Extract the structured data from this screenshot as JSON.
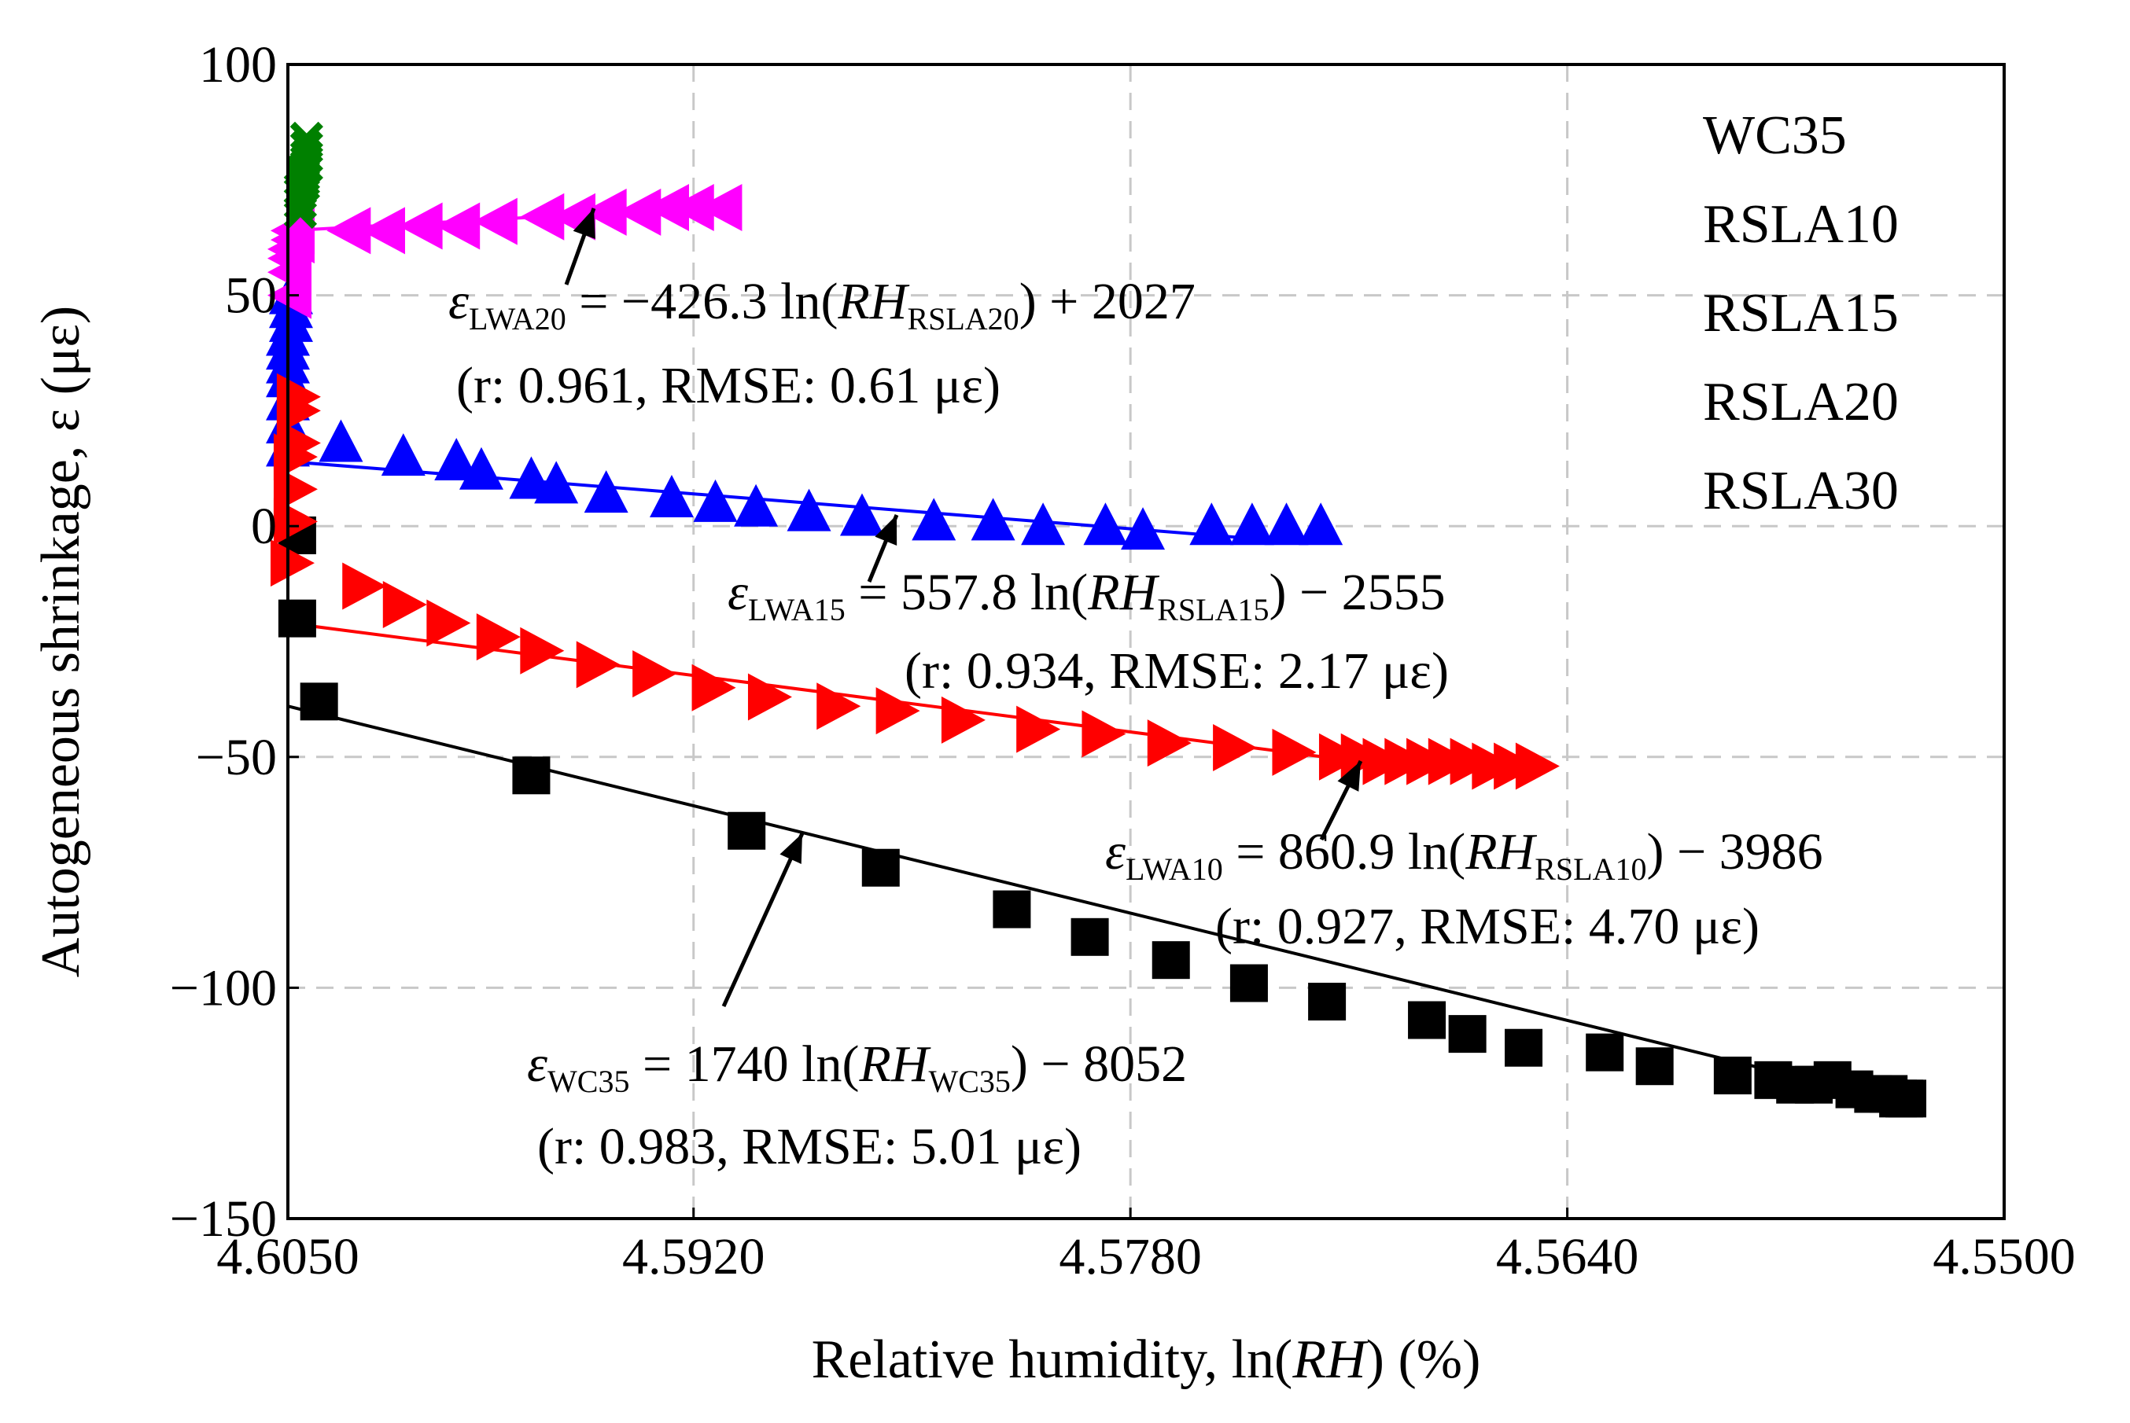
{
  "chart_data": {
    "type": "scatter",
    "title": "",
    "xlabel": "Relative humidity, ln(RH) (%)",
    "xlabel_parts": {
      "pre": "Relative humidity, ln(",
      "italic": "RH",
      "post": ") (%)"
    },
    "ylabel": "Autogeneous shrinkage, ε (με)",
    "xlim": [
      4.605,
      4.55
    ],
    "ylim": [
      -150,
      100
    ],
    "x_ticks": [
      "4.6050",
      "4.5920",
      "4.5780",
      "4.5640",
      "4.5500"
    ],
    "x_tick_values": [
      4.605,
      4.592,
      4.578,
      4.564,
      4.55
    ],
    "y_ticks": [
      "100",
      "50",
      "0",
      "−50",
      "−100",
      "−150"
    ],
    "y_tick_values": [
      100,
      50,
      0,
      -50,
      -100,
      -150
    ],
    "grid": true,
    "legend": {
      "placement": "top-right",
      "entries": [
        "WC35",
        "RSLA10",
        "RSLA15",
        "RSLA20",
        "RSLA30"
      ]
    },
    "series": [
      {
        "name": "WC35",
        "color": "#000000",
        "marker": "square",
        "x": [
          4.6047,
          4.6047,
          4.604,
          4.5972,
          4.5903,
          4.586,
          4.5818,
          4.5793,
          4.5767,
          4.5742,
          4.5717,
          4.5685,
          4.5672,
          4.5654,
          4.5628,
          4.5612,
          4.5587,
          4.5574,
          4.5567,
          4.5561,
          4.5555,
          4.5548,
          4.5542,
          4.5537,
          4.5534,
          4.5532,
          4.5531
        ],
        "y": [
          -2,
          -20,
          -38,
          -54,
          -66,
          -74,
          -83,
          -89,
          -94,
          -99,
          -103,
          -107,
          -110,
          -113,
          -114,
          -117,
          -119,
          -120,
          -121,
          -121,
          -120,
          -122,
          -123,
          -123,
          -124,
          -124,
          -124
        ],
        "fit": {
          "label": "ε_WC35 = 1740 ln(RH_WC35) − 8052",
          "x_range": [
            4.605,
            4.5532
          ],
          "y_range": [
            -39,
            -125
          ]
        }
      },
      {
        "name": "RSLA10",
        "color": "#ff0000",
        "marker": "triangle-right",
        "x": [
          4.6049,
          4.6048,
          4.6048,
          4.6048,
          4.6047,
          4.6047,
          4.6047,
          4.6026,
          4.6013,
          4.5999,
          4.5983,
          4.5969,
          4.5951,
          4.5933,
          4.5914,
          4.5896,
          4.5874,
          4.5855,
          4.5834,
          4.581,
          4.5789,
          4.5768,
          4.5747,
          4.5728,
          4.5713,
          4.5706,
          4.5699,
          4.5692,
          4.5685,
          4.5678,
          4.5671,
          4.5664,
          4.5657,
          4.565
        ],
        "y": [
          -8,
          1,
          8,
          15,
          18,
          25,
          28,
          -13,
          -17,
          -21,
          -24,
          -27,
          -30,
          -32,
          -35,
          -37,
          -39,
          -40,
          -42,
          -44,
          -45,
          -47,
          -48,
          -49,
          -50,
          -50,
          -51,
          -51,
          -51,
          -51,
          -51,
          -52,
          -52,
          -52
        ],
        "fit": {
          "label": "ε_LWA10 = 860.9 ln(RH_RSLA10) − 3986",
          "x_range": [
            4.605,
            4.5718
          ],
          "y_range": [
            -21,
            -50
          ]
        }
      },
      {
        "name": "RSLA15",
        "color": "#0000ff",
        "marker": "triangle-up",
        "x": [
          4.605,
          4.605,
          4.605,
          4.605,
          4.605,
          4.605,
          4.605,
          4.6049,
          4.6049,
          4.6049,
          4.6033,
          4.6013,
          4.5996,
          4.5988,
          4.5972,
          4.5964,
          4.5948,
          4.5927,
          4.5913,
          4.59,
          4.5883,
          4.5866,
          4.5843,
          4.5824,
          4.5808,
          4.5788,
          4.5776,
          4.5754,
          4.5741,
          4.573,
          4.5719
        ],
        "y": [
          17,
          22,
          27,
          32,
          35,
          38,
          41,
          44,
          47,
          50,
          18,
          15,
          14,
          12,
          10,
          9,
          7,
          6,
          5,
          4,
          3,
          2,
          1,
          1,
          0,
          0,
          -1,
          0,
          0,
          0,
          0
        ],
        "fit": {
          "label": "ε_LWA15 = 557.8 ln(RH_RSLA15) − 2555",
          "x_range": [
            4.605,
            4.5735
          ],
          "y_range": [
            14,
            -3
          ]
        }
      },
      {
        "name": "RSLA20",
        "color": "#ff00ff",
        "marker": "triangle-left",
        "x": [
          4.6049,
          4.6049,
          4.6049,
          4.6049,
          4.6048,
          4.6048,
          4.603,
          4.6019,
          4.6007,
          4.5995,
          4.5983,
          4.5968,
          4.5958,
          4.5948,
          4.5937,
          4.5928,
          4.592,
          4.5911
        ],
        "y": [
          50,
          55,
          58,
          60,
          62,
          64,
          64,
          64,
          65,
          65,
          66,
          67,
          67,
          68,
          68,
          69,
          69,
          69
        ],
        "fit": {
          "label": "ε_LWA20 = −426.3 ln(RH_RSLA20) + 2027",
          "x_range": [
            4.605,
            4.5915
          ],
          "y_range": [
            64,
            69
          ]
        }
      },
      {
        "name": "RSLA30",
        "color": "#008000",
        "marker": "cross",
        "x": [
          4.6046,
          4.6046,
          4.6046,
          4.6046,
          4.6045,
          4.6045,
          4.6045,
          4.6045,
          4.6044,
          4.6044,
          4.6044,
          4.6044
        ],
        "y": [
          68,
          70,
          72,
          73,
          74,
          75,
          76,
          77,
          78,
          80,
          82,
          84
        ]
      }
    ],
    "annotations": [
      {
        "id": "rsla20",
        "var": "ε",
        "sub": "LWA20",
        "body": " = −426.3 ln(",
        "var2": "RH",
        "sub2": "RSLA20",
        "tail": ") + 2027",
        "stats": "(r: 0.961, RMSE: 0.61 με)"
      },
      {
        "id": "rsla15",
        "var": "ε",
        "sub": "LWA15",
        "body": " = 557.8 ln(",
        "var2": "RH",
        "sub2": "RSLA15",
        "tail": ") − 2555",
        "stats": "(r: 0.934, RMSE: 2.17 με)"
      },
      {
        "id": "rsla10",
        "var": "ε",
        "sub": "LWA10",
        "body": " = 860.9 ln(",
        "var2": "RH",
        "sub2": "RSLA10",
        "tail": ") − 3986",
        "stats": "(r: 0.927, RMSE: 4.70 με)"
      },
      {
        "id": "wc35",
        "var": "ε",
        "sub": "WC35",
        "body": " = 1740 ln(",
        "var2": "RH",
        "sub2": "WC35",
        "tail": ") − 8052",
        "stats": "(r: 0.983, RMSE: 5.01 με)"
      }
    ]
  }
}
